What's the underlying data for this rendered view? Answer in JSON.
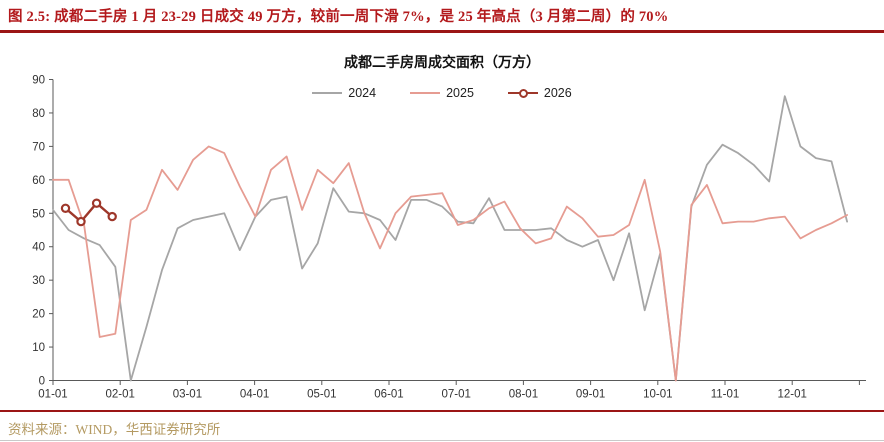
{
  "header": {
    "title": "图 2.5:  成都二手房 1 月 23-29 日成交 49 万方，较前一周下滑 7%，是 25 年高点（3 月第二周）的 70%"
  },
  "footer": {
    "source": "资料来源：WIND，华西证券研究所"
  },
  "colors": {
    "header_red": "#b3191c",
    "rule_red": "#9b1515",
    "footer_tan": "#b49a62",
    "axis": "#595959",
    "tick_label": "#333333"
  },
  "chart_data": {
    "type": "line",
    "title": "成都二手房周成交面积（万方）",
    "xlabel": "",
    "ylabel": "",
    "ylim": [
      0,
      90
    ],
    "y_ticks": [
      0,
      10,
      20,
      30,
      40,
      50,
      60,
      70,
      80,
      90
    ],
    "x_tick_labels": [
      "01-01",
      "02-01",
      "03-01",
      "04-01",
      "05-01",
      "06-01",
      "07-01",
      "08-01",
      "09-01",
      "10-01",
      "11-01",
      "12-01"
    ],
    "grid": false,
    "legend_position": "top-center",
    "x_unit": "week-of-year",
    "series": [
      {
        "name": "2024",
        "color": "#a6a6a6",
        "line_width": 1.8,
        "marker": "none",
        "week_offset": 0,
        "values": [
          51,
          45,
          42.5,
          40.5,
          34,
          0,
          16,
          33,
          45.5,
          48,
          49,
          50,
          39,
          49,
          54,
          55,
          33.5,
          41,
          57.5,
          50.5,
          50,
          48,
          42,
          54,
          54,
          52,
          47.5,
          47,
          54.5,
          45,
          45,
          45,
          45.5,
          42,
          40,
          42,
          30,
          44,
          21,
          38,
          0,
          52,
          64.5,
          70.5,
          68,
          64.5,
          59.5,
          85,
          70,
          66.5,
          65.5,
          47.5
        ]
      },
      {
        "name": "2025",
        "color": "#e69c92",
        "line_width": 1.8,
        "marker": "none",
        "week_offset": 0,
        "values": [
          60,
          60,
          46.5,
          13,
          14,
          48,
          51,
          63,
          57,
          66,
          70,
          68,
          58,
          49,
          63,
          67,
          51,
          63,
          59,
          65,
          50,
          39.5,
          50,
          55,
          55.5,
          56,
          46.5,
          48,
          51.5,
          53.5,
          45.5,
          41,
          42.5,
          52,
          48.5,
          43,
          43.5,
          46.5,
          60,
          38.5,
          0,
          52.5,
          58.5,
          47,
          47.5,
          47.5,
          48.5,
          49,
          42.5,
          45,
          47,
          49.5
        ]
      },
      {
        "name": "2026",
        "color": "#9e372a",
        "line_width": 2.4,
        "marker": "circle-open",
        "week_offset": 0.8,
        "values": [
          51.5,
          47.5,
          53,
          49
        ]
      }
    ]
  }
}
